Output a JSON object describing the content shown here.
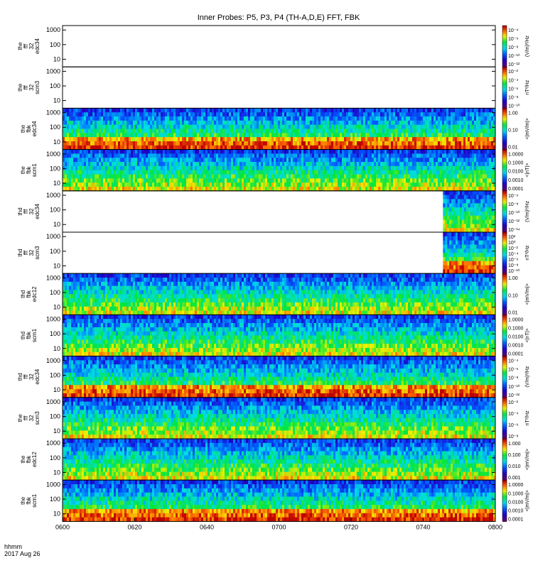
{
  "figure": {
    "title": "Inner Probes: P5, P3, P4 (TH-A,D,E) FFT, FBK",
    "time_label": "hhmm",
    "date_label": "2017 Aug 26"
  },
  "chart_data": {
    "type": "heatmap",
    "x_ticks": [
      "0600",
      "0620",
      "0640",
      "0700",
      "0720",
      "0740",
      "0800"
    ],
    "x_range": [
      "06:00",
      "08:00"
    ],
    "colormap": "rainbow (purple-blue-cyan-green-yellow-red)",
    "panels": [
      {
        "label": [
          "the",
          "fff",
          "32",
          "edc34"
        ],
        "y_ticks": [
          "1000",
          "100",
          "10"
        ],
        "ylim": [
          3,
          2000
        ],
        "cb_label": "(V/m)²/Hz",
        "cb_ticks": [
          "10⁻⁴",
          "10⁻⁶",
          "10⁻⁸",
          "10⁻¹⁰",
          "10⁻¹²"
        ],
        "coverage": [
          0,
          0
        ]
      },
      {
        "label": [
          "the",
          "fff",
          "32",
          "scm3"
        ],
        "y_ticks": [
          "1000",
          "100",
          "10"
        ],
        "ylim": [
          3,
          2000
        ],
        "cb_label": "nT²/Hz",
        "cb_ticks": [
          "10⁻²",
          "10⁻⁴",
          "10⁻⁶",
          "10⁻⁸",
          "10⁻¹⁰"
        ],
        "coverage": [
          0,
          0
        ]
      },
      {
        "label": [
          "the",
          "fbk",
          "edc34"
        ],
        "y_ticks": [
          "1000",
          "100",
          "10"
        ],
        "ylim": [
          3,
          2000
        ],
        "cb_label": "<|mV/m|>",
        "cb_ticks": [
          "1.00",
          "0.10",
          "0.01"
        ],
        "coverage": [
          0,
          1
        ]
      },
      {
        "label": [
          "the",
          "fbk",
          "scm1"
        ],
        "y_ticks": [
          "1000",
          "100",
          "10"
        ],
        "ylim": [
          3,
          2000
        ],
        "cb_label": "<|nT|>",
        "cb_ticks": [
          "1.0000",
          "0.1000",
          "0.0100",
          "0.0010",
          "0.0001"
        ],
        "coverage": [
          0,
          1
        ]
      },
      {
        "label": [
          "thd",
          "fff",
          "32",
          "edc34"
        ],
        "y_ticks": [
          "1000",
          "100",
          "10"
        ],
        "ylim": [
          3,
          2000
        ],
        "cb_label": "(V/m)²/Hz",
        "cb_ticks": [
          "10⁻⁶",
          "10⁻⁸",
          "10⁻¹⁰",
          "10⁻¹²",
          "10⁻¹⁴"
        ],
        "coverage": [
          0.879,
          1
        ]
      },
      {
        "label": [
          "thd",
          "fff",
          "32",
          "scm3"
        ],
        "y_ticks": [
          "1000",
          "100",
          "10"
        ],
        "ylim": [
          3,
          2000
        ],
        "cb_label": "nT²/Hz",
        "cb_ticks": [
          "10²",
          "10⁰",
          "10⁻²",
          "10⁻⁴",
          "10⁻⁶",
          "10⁻⁸",
          "10⁻¹⁰"
        ],
        "coverage": [
          0.879,
          1
        ]
      },
      {
        "label": [
          "thd",
          "fbk",
          "edc12"
        ],
        "y_ticks": [
          "1000",
          "100",
          "10"
        ],
        "ylim": [
          3,
          2000
        ],
        "cb_label": "<|mV/m|>",
        "cb_ticks": [
          "1.00",
          "0.10",
          "0.01"
        ],
        "coverage": [
          0,
          1
        ]
      },
      {
        "label": [
          "thd",
          "fbk",
          "scm1"
        ],
        "y_ticks": [
          "1000",
          "100",
          "10"
        ],
        "ylim": [
          3,
          2000
        ],
        "cb_label": "<|nT|>",
        "cb_ticks": [
          "1.0000",
          "0.1000",
          "0.0100",
          "0.0010",
          "0.0001"
        ],
        "coverage": [
          0,
          1
        ]
      },
      {
        "label": [
          "thd",
          "fff",
          "32",
          "edc34"
        ],
        "y_ticks": [
          "1000",
          "100",
          "10"
        ],
        "ylim": [
          3,
          2000
        ],
        "cb_label": "(V/m)²/Hz",
        "cb_ticks": [
          "10⁻⁴",
          "10⁻⁶",
          "10⁻⁸",
          "10⁻¹⁰",
          "10⁻¹²"
        ],
        "coverage": [
          0,
          1
        ]
      },
      {
        "label": [
          "the",
          "fff",
          "32",
          "scm3"
        ],
        "y_ticks": [
          "1000",
          "100",
          "10"
        ],
        "ylim": [
          3,
          2000
        ],
        "cb_label": "nT²/Hz",
        "cb_ticks": [
          "10⁻²",
          "10⁻⁴",
          "10⁻⁶",
          "10⁻⁸"
        ],
        "coverage": [
          0,
          1
        ]
      },
      {
        "label": [
          "the",
          "fbk",
          "edc12"
        ],
        "y_ticks": [
          "1000",
          "100",
          "10"
        ],
        "ylim": [
          3,
          2000
        ],
        "cb_label": "<|mV/m|>",
        "cb_ticks": [
          "1.000",
          "0.100",
          "0.010",
          "0.001"
        ],
        "coverage": [
          0,
          1
        ]
      },
      {
        "label": [
          "the",
          "fbk",
          "scm1"
        ],
        "y_ticks": [
          "1000",
          "100",
          "10"
        ],
        "ylim": [
          3,
          2000
        ],
        "cb_label": "<|mV/m|>",
        "cb_ticks": [
          "1.0000",
          "0.1000",
          "0.0100",
          "0.0010",
          "0.0001"
        ],
        "coverage": [
          0,
          1
        ]
      }
    ]
  }
}
